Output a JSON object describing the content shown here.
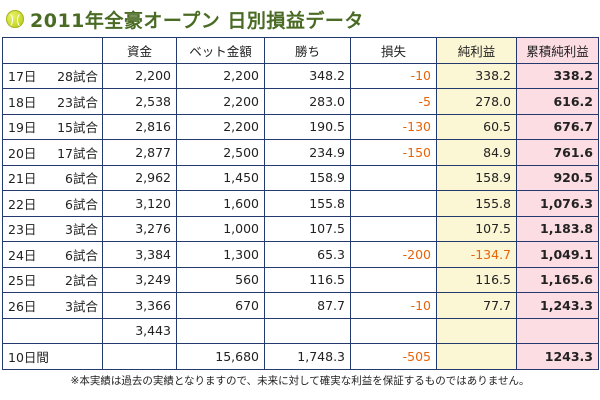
{
  "title": "2011年全豪オープン 日別損益データ",
  "headers": [
    "",
    "資金",
    "ベット金額",
    "勝ち",
    "損失",
    "純利益",
    "累積純利益"
  ],
  "rows": [
    {
      "day": "17日",
      "games": "28試合",
      "funds": "2,200",
      "bet": "2,200",
      "win": "348.2",
      "loss": "-10",
      "net": "338.2",
      "cum": "338.2"
    },
    {
      "day": "18日",
      "games": "23試合",
      "funds": "2,538",
      "bet": "2,200",
      "win": "283.0",
      "loss": "-5",
      "net": "278.0",
      "cum": "616.2"
    },
    {
      "day": "19日",
      "games": "15試合",
      "funds": "2,816",
      "bet": "2,200",
      "win": "190.5",
      "loss": "-130",
      "net": "60.5",
      "cum": "676.7"
    },
    {
      "day": "20日",
      "games": "17試合",
      "funds": "2,877",
      "bet": "2,500",
      "win": "234.9",
      "loss": "-150",
      "net": "84.9",
      "cum": "761.6"
    },
    {
      "day": "21日",
      "games": "6試合",
      "funds": "2,962",
      "bet": "1,450",
      "win": "158.9",
      "loss": "",
      "net": "158.9",
      "cum": "920.5"
    },
    {
      "day": "22日",
      "games": "6試合",
      "funds": "3,120",
      "bet": "1,600",
      "win": "155.8",
      "loss": "",
      "net": "155.8",
      "cum": "1,076.3"
    },
    {
      "day": "23日",
      "games": "3試合",
      "funds": "3,276",
      "bet": "1,000",
      "win": "107.5",
      "loss": "",
      "net": "107.5",
      "cum": "1,183.8"
    },
    {
      "day": "24日",
      "games": "6試合",
      "funds": "3,384",
      "bet": "1,300",
      "win": "65.3",
      "loss": "-200",
      "net": "-134.7",
      "cum": "1,049.1"
    },
    {
      "day": "25日",
      "games": "2試合",
      "funds": "3,249",
      "bet": "560",
      "win": "116.5",
      "loss": "",
      "net": "116.5",
      "cum": "1,165.6"
    },
    {
      "day": "26日",
      "games": "3試合",
      "funds": "3,366",
      "bet": "670",
      "win": "87.7",
      "loss": "-10",
      "net": "77.7",
      "cum": "1,243.3"
    },
    {
      "day": "",
      "games": "",
      "funds": "3,443",
      "bet": "",
      "win": "",
      "loss": "",
      "net": "",
      "cum": ""
    }
  ],
  "total": {
    "label": "10日間",
    "funds": "",
    "bet": "15,680",
    "win": "1,748.3",
    "loss": "-505",
    "net": "",
    "cum": "1243.3"
  },
  "note": "※本実績は過去の実績となりますので、未来に対して確実な利益を保証するものではありません。",
  "colors": {
    "title": "#4a6b24",
    "negative": "#e8640a",
    "net_bg": "#fbf6d4",
    "cum_bg": "#fcdde3",
    "border": "#24396e"
  }
}
